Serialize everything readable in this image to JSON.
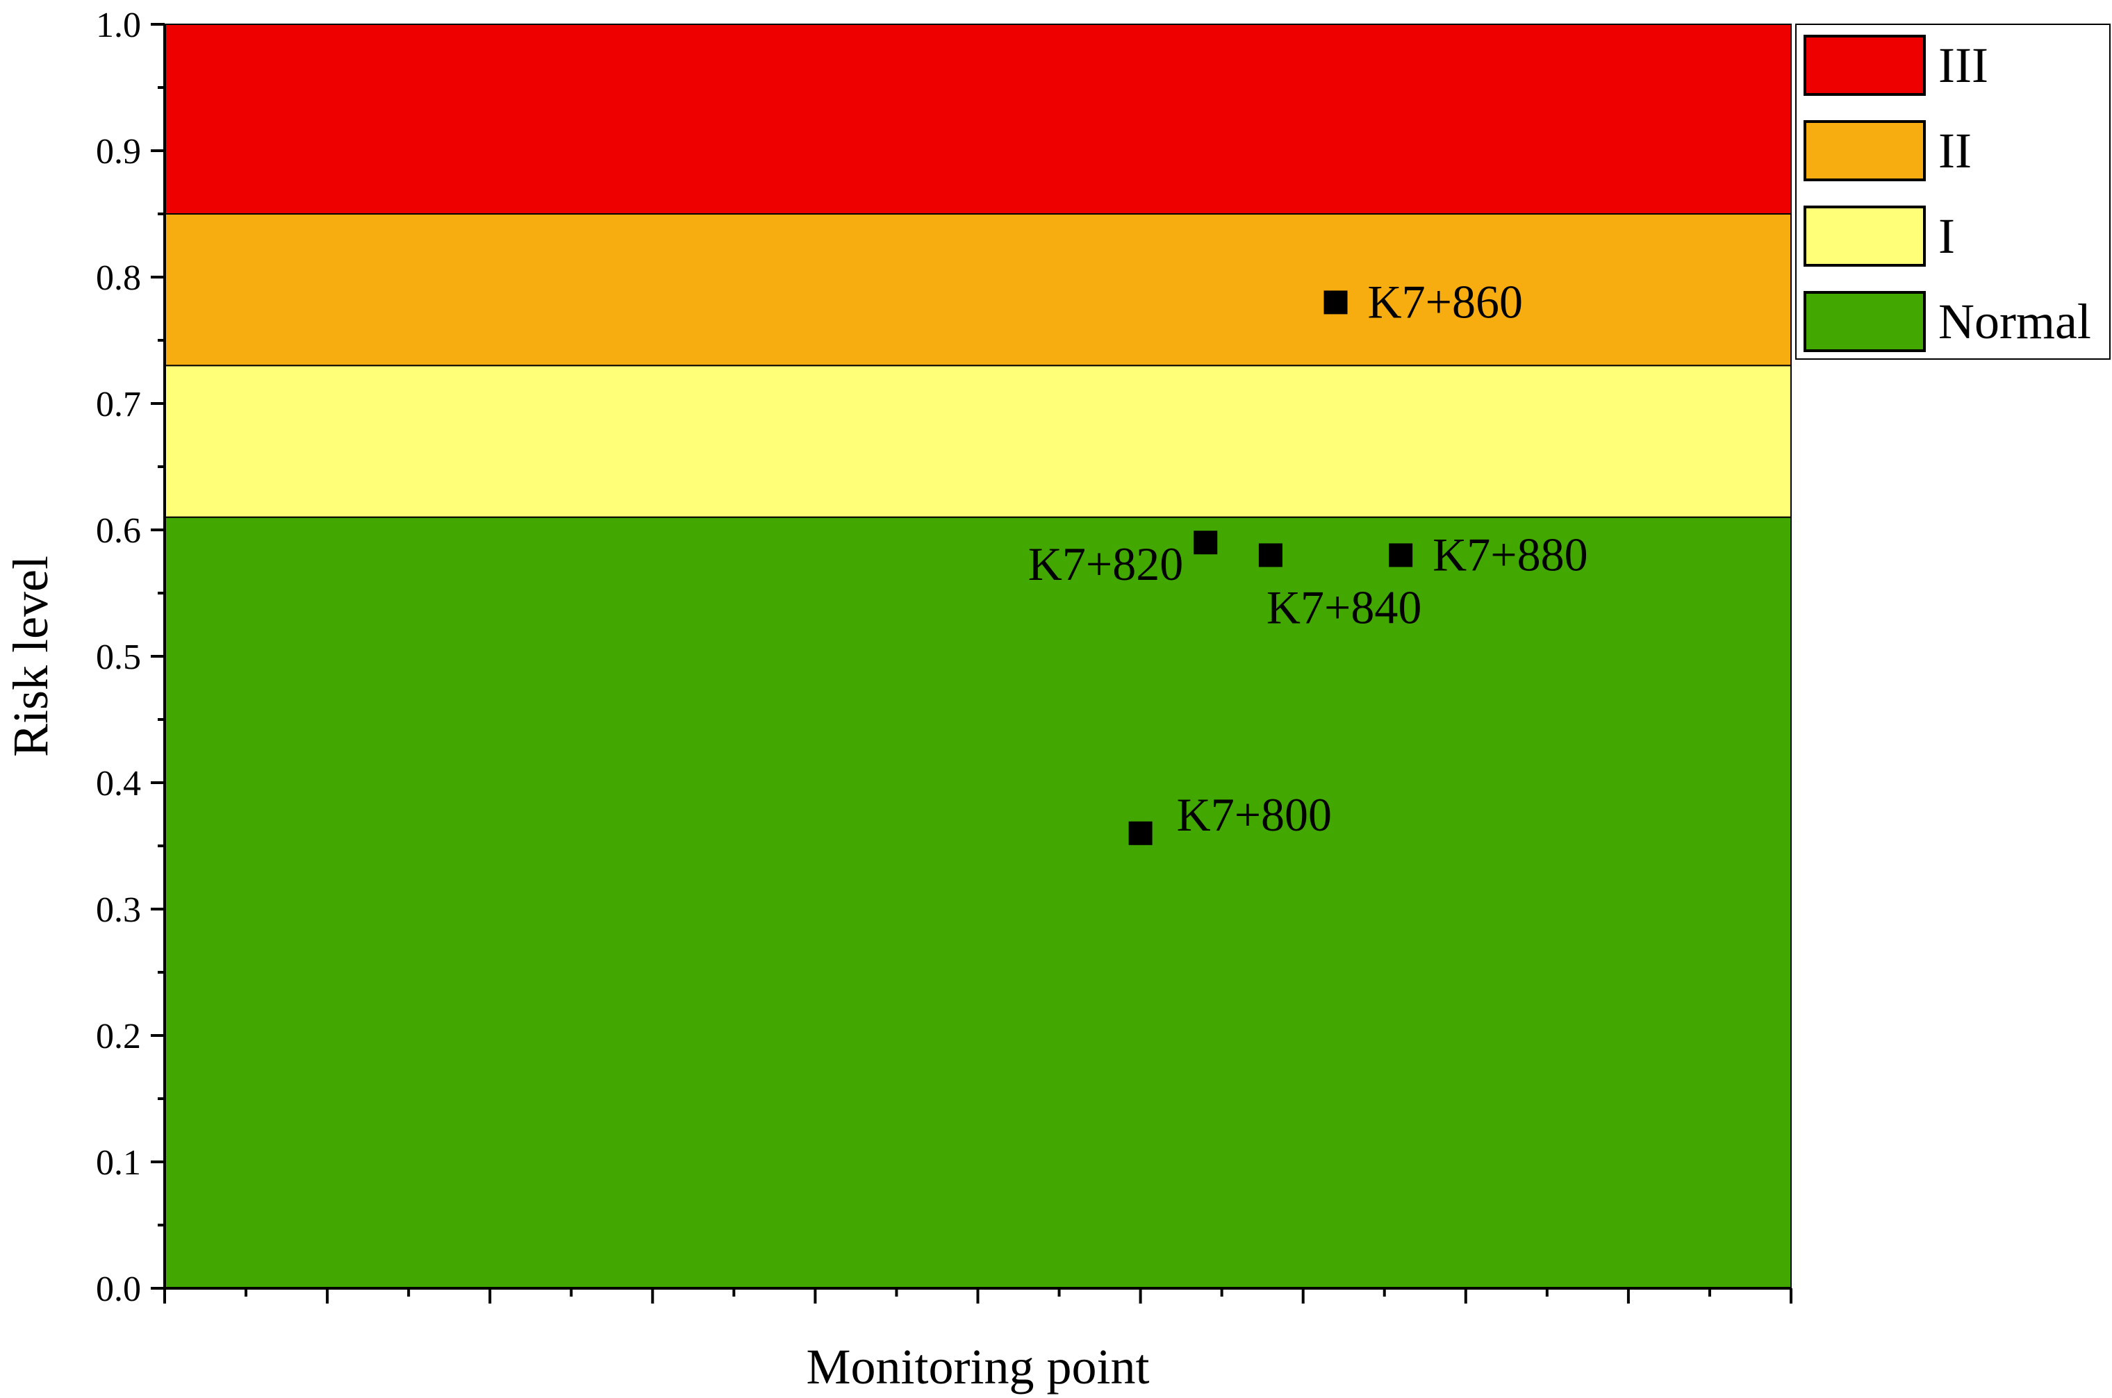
{
  "chart_data": {
    "type": "scatter",
    "xlabel": "Monitoring point",
    "ylabel": "Risk level",
    "ylim": [
      0.0,
      1.0
    ],
    "xlim": [
      0,
      10
    ],
    "y_ticks": [
      "0.0",
      "0.1",
      "0.2",
      "0.3",
      "0.4",
      "0.5",
      "0.6",
      "0.7",
      "0.8",
      "0.9",
      "1.0"
    ],
    "x_tick_labels": [],
    "grid": false,
    "legend_position": "top-right outside",
    "bands": [
      {
        "name": "III",
        "from": 0.85,
        "to": 1.0,
        "color": "#ee0000"
      },
      {
        "name": "II",
        "from": 0.73,
        "to": 0.85,
        "color": "#f7ac10"
      },
      {
        "name": "I",
        "from": 0.61,
        "to": 0.73,
        "color": "#ffff78"
      },
      {
        "name": "Normal",
        "from": 0.0,
        "to": 0.61,
        "color": "#42a800"
      }
    ],
    "points": [
      {
        "label": "K7+800",
        "x": 6.0,
        "y": 0.36,
        "label_side": "right-above"
      },
      {
        "label": "K7+820",
        "x": 6.4,
        "y": 0.59,
        "label_side": "left-below"
      },
      {
        "label": "K7+840",
        "x": 6.8,
        "y": 0.58,
        "label_side": "right-below"
      },
      {
        "label": "K7+860",
        "x": 7.2,
        "y": 0.78,
        "label_side": "right"
      },
      {
        "label": "K7+880",
        "x": 7.6,
        "y": 0.58,
        "label_side": "right"
      }
    ],
    "marker": {
      "shape": "square",
      "color": "#000000"
    }
  }
}
